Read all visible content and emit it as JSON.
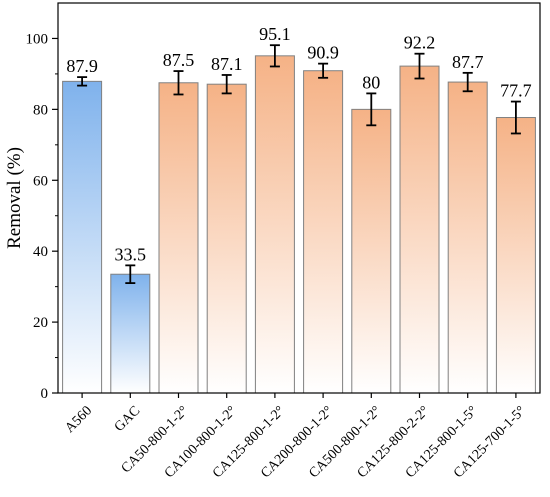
{
  "chart_data": {
    "type": "bar",
    "title": "",
    "xlabel": "",
    "ylabel": "Removal (%)",
    "ylim": [
      0,
      110
    ],
    "yticks": [
      0,
      20,
      40,
      60,
      80,
      100
    ],
    "grid": false,
    "legend": "none",
    "categories": [
      "A560",
      "GAC",
      "CA50-800-1-2°",
      "CA100-800-1-2°",
      "CA125-800-1-2°",
      "CA200-800-1-2°",
      "CA500-800-1-2°",
      "CA125-800-2-2°",
      "CA125-800-1-5°",
      "CA125-700-1-5°"
    ],
    "values": [
      87.9,
      33.5,
      87.5,
      87.1,
      95.1,
      90.9,
      80,
      92.2,
      87.7,
      77.7
    ],
    "value_labels": [
      "87.9",
      "33.5",
      "87.5",
      "87.1",
      "95.1",
      "90.9",
      "80",
      "92.2",
      "87.7",
      "77.7"
    ],
    "errors": [
      1.2,
      2.5,
      3.3,
      2.6,
      3.0,
      2.0,
      4.5,
      3.5,
      2.6,
      4.5
    ],
    "bar_groups": [
      "blue",
      "blue",
      "orange",
      "orange",
      "orange",
      "orange",
      "orange",
      "orange",
      "orange",
      "orange"
    ],
    "colors": {
      "blue_top": "#7fb2ec",
      "blue_bottom": "#ffffff",
      "orange_top": "#f5b286",
      "orange_bottom": "#ffffff",
      "bar_stroke": "#808080",
      "axis": "#000000"
    }
  }
}
